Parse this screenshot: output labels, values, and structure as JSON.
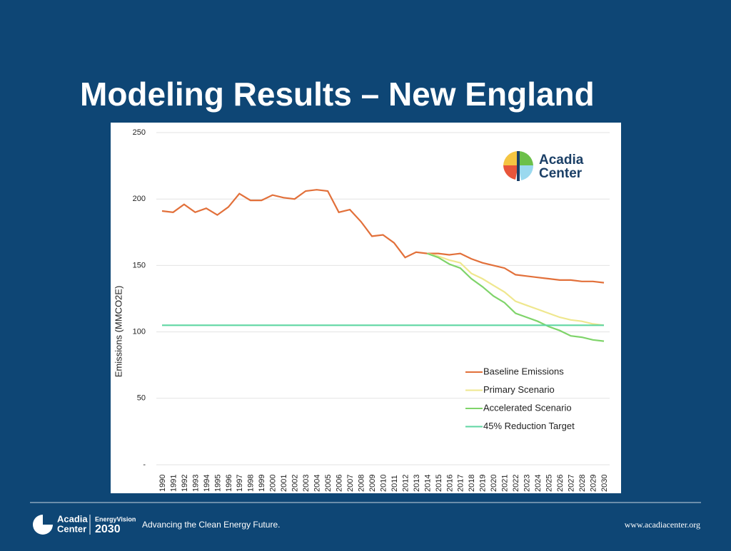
{
  "chart_data": {
    "type": "line",
    "title": "Modeling Results – New England",
    "ylabel": "Emissions (MMCO2E)",
    "categories": [
      "1990",
      "1991",
      "1992",
      "1993",
      "1994",
      "1995",
      "1996",
      "1997",
      "1998",
      "1999",
      "2000",
      "2001",
      "2002",
      "2003",
      "2004",
      "2005",
      "2006",
      "2007",
      "2008",
      "2009",
      "2010",
      "2011",
      "2012",
      "2013",
      "2014",
      "2015",
      "2016",
      "2017",
      "2018",
      "2019",
      "2020",
      "2021",
      "2022",
      "2023",
      "2024",
      "2025",
      "2026",
      "2027",
      "2028",
      "2029",
      "2030"
    ],
    "series": [
      {
        "name": "Baseline Emissions",
        "color": "#e2703a",
        "values": [
          191,
          190,
          196,
          190,
          193,
          188,
          194,
          204,
          199,
          199,
          203,
          201,
          200,
          206,
          207,
          206,
          190,
          192,
          183,
          172,
          173,
          167,
          156,
          160,
          159,
          159,
          158,
          159,
          155,
          152,
          150,
          148,
          143,
          142,
          141,
          140,
          139,
          139,
          138,
          138,
          137
        ]
      },
      {
        "name": "Primary Scenario",
        "color": "#efe78e",
        "values": [
          null,
          null,
          null,
          null,
          null,
          null,
          null,
          null,
          null,
          null,
          null,
          null,
          null,
          null,
          null,
          null,
          null,
          null,
          null,
          null,
          null,
          null,
          null,
          null,
          159,
          157,
          154,
          152,
          144,
          140,
          135,
          130,
          123,
          120,
          117,
          114,
          111,
          109,
          108,
          106,
          105
        ]
      },
      {
        "name": "Accelerated Scenario",
        "color": "#7fd46a",
        "values": [
          null,
          null,
          null,
          null,
          null,
          null,
          null,
          null,
          null,
          null,
          null,
          null,
          null,
          null,
          null,
          null,
          null,
          null,
          null,
          null,
          null,
          null,
          null,
          null,
          159,
          156,
          151,
          148,
          140,
          134,
          127,
          122,
          114,
          111,
          108,
          104,
          101,
          97,
          96,
          94,
          93
        ]
      },
      {
        "name": "45% Reduction Target",
        "color": "#5fd6a2",
        "values": [
          105,
          105,
          105,
          105,
          105,
          105,
          105,
          105,
          105,
          105,
          105,
          105,
          105,
          105,
          105,
          105,
          105,
          105,
          105,
          105,
          105,
          105,
          105,
          105,
          105,
          105,
          105,
          105,
          105,
          105,
          105,
          105,
          105,
          105,
          105,
          105,
          105,
          105,
          105,
          105,
          105
        ]
      }
    ],
    "ylim": [
      0,
      250
    ],
    "yticks": [
      {
        "value": 0,
        "label": "-"
      },
      50,
      100,
      150,
      200,
      250
    ],
    "grid": true,
    "legend": "lower right"
  },
  "chart_logo": [
    "Acadia",
    "Center"
  ],
  "footer": {
    "logo": [
      "Acadia",
      "Center"
    ],
    "program": [
      "EnergyVision",
      "2030"
    ],
    "tagline": "Advancing the Clean Energy Future.",
    "url": "www.acadiacenter.org"
  }
}
